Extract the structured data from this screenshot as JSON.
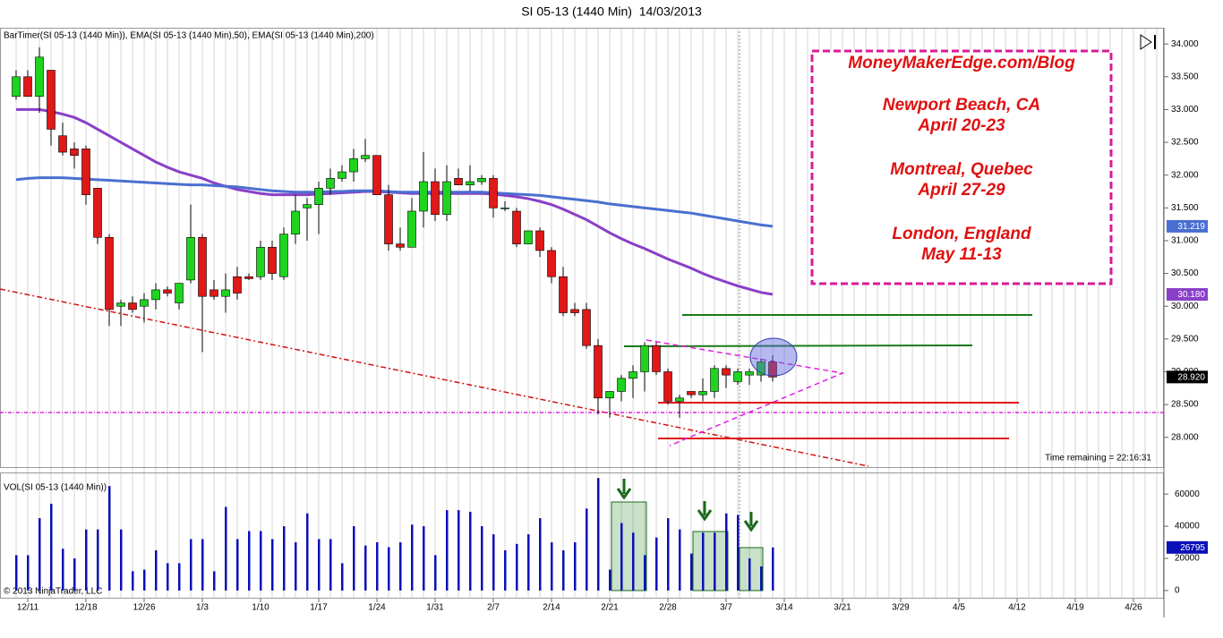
{
  "chart_data": [
    {
      "type": "candlestick",
      "title": "SI 05-13 (1440 Min)  14/03/2013",
      "subtitle": "BarTimer(SI 05-13 (1440 Min)), EMA(SI 05-13 (1440 Min),50), EMA(SI 05-13 (1440 Min),200)",
      "annotations": [
        "Time remaining = 22:16:31"
      ],
      "text_box": [
        "MoneyMakerEdge.com/Blog",
        "Newport Beach, CA",
        "April 20-23",
        "Montreal, Quebec",
        "April 27-29",
        "London, England",
        "May 11-13"
      ],
      "up_color": "#1ed41e",
      "down_color": "#e01818",
      "open": [
        33.2,
        33.5,
        33.2,
        33.6,
        32.6,
        32.4,
        32.4,
        31.8,
        31.05,
        30.0,
        30.05,
        30.0,
        30.1,
        30.25,
        30.05,
        30.4,
        31.05,
        30.25,
        30.15,
        30.45,
        30.45,
        30.45,
        30.9,
        30.45,
        31.1,
        31.5,
        31.55,
        31.8,
        31.95,
        32.05,
        32.25,
        32.3,
        31.7,
        30.95,
        30.9,
        31.45,
        31.9,
        31.4,
        31.95,
        31.85,
        31.9,
        31.95,
        31.5,
        31.45,
        30.95,
        31.15,
        30.85,
        30.45,
        29.95,
        29.95,
        29.4,
        28.6,
        28.7,
        28.9,
        29.0,
        29.4,
        29.0,
        28.55,
        28.7,
        28.65,
        28.7,
        29.05,
        28.85,
        28.95,
        28.95,
        29.15
      ],
      "high": [
        33.6,
        33.6,
        33.95,
        33.6,
        32.8,
        32.5,
        32.45,
        31.8,
        31.1,
        30.1,
        30.15,
        30.2,
        30.35,
        30.3,
        30.35,
        31.55,
        31.1,
        30.4,
        30.5,
        30.6,
        30.5,
        31.0,
        31.0,
        31.2,
        31.7,
        31.65,
        31.9,
        32.1,
        32.15,
        32.4,
        32.55,
        32.3,
        31.85,
        31.2,
        31.65,
        32.35,
        32.1,
        32.15,
        32.1,
        32.15,
        32.0,
        32.0,
        31.6,
        31.5,
        31.15,
        31.2,
        30.9,
        30.6,
        30.05,
        30.05,
        29.5,
        28.7,
        28.95,
        29.1,
        29.45,
        29.45,
        29.05,
        28.65,
        28.7,
        28.9,
        29.1,
        29.1,
        29.05,
        29.05,
        29.2,
        29.25
      ],
      "low": [
        33.15,
        33.2,
        32.95,
        32.45,
        32.3,
        32.1,
        31.55,
        30.95,
        29.7,
        29.7,
        29.9,
        29.75,
        29.95,
        30.15,
        29.95,
        30.35,
        29.3,
        30.1,
        29.9,
        30.1,
        30.4,
        30.4,
        30.4,
        30.4,
        30.95,
        31.0,
        31.1,
        31.7,
        31.9,
        31.9,
        32.2,
        31.7,
        30.85,
        30.85,
        30.9,
        31.2,
        31.3,
        31.3,
        31.85,
        31.75,
        31.85,
        31.35,
        31.45,
        30.9,
        30.95,
        30.75,
        30.35,
        29.85,
        29.85,
        29.35,
        28.35,
        28.3,
        28.55,
        28.6,
        28.7,
        28.95,
        28.5,
        28.3,
        28.6,
        28.55,
        28.6,
        28.75,
        28.8,
        28.8,
        28.85,
        28.85
      ],
      "close": [
        33.5,
        33.2,
        33.8,
        32.7,
        32.35,
        32.3,
        31.7,
        31.05,
        29.95,
        30.05,
        29.95,
        30.1,
        30.25,
        30.2,
        30.35,
        31.05,
        30.15,
        30.15,
        30.25,
        30.2,
        30.42,
        30.9,
        30.5,
        31.1,
        31.45,
        31.55,
        31.8,
        31.95,
        32.05,
        32.25,
        32.3,
        31.7,
        30.95,
        30.9,
        31.45,
        31.9,
        31.4,
        31.9,
        31.85,
        31.9,
        31.95,
        31.5,
        31.5,
        30.95,
        31.15,
        30.85,
        30.45,
        29.9,
        29.9,
        29.4,
        28.6,
        28.7,
        28.9,
        29.0,
        29.4,
        29.0,
        28.55,
        28.6,
        28.65,
        28.7,
        29.05,
        28.95,
        29.0,
        29.0,
        29.15,
        28.92
      ],
      "close_label": "28.920",
      "lines": [
        {
          "color": "#8a3fc8",
          "last_label": "30.180",
          "values": [
            33.0,
            33.0,
            33.0,
            32.97,
            32.93,
            32.88,
            32.8,
            32.7,
            32.6,
            32.5,
            32.4,
            32.3,
            32.2,
            32.12,
            32.05,
            32.0,
            31.95,
            31.88,
            31.83,
            31.78,
            31.75,
            31.72,
            31.7,
            31.7,
            31.7,
            31.7,
            31.71,
            31.72,
            31.73,
            31.74,
            31.75,
            31.75,
            31.74,
            31.73,
            31.72,
            31.72,
            31.72,
            31.72,
            31.72,
            31.72,
            31.72,
            31.71,
            31.69,
            31.67,
            31.64,
            31.6,
            31.55,
            31.48,
            31.4,
            31.32,
            31.22,
            31.12,
            31.03,
            30.95,
            30.88,
            30.8,
            30.72,
            30.65,
            30.58,
            30.5,
            30.43,
            30.37,
            30.31,
            30.26,
            30.21,
            30.18
          ]
        },
        {
          "color": "#4a6fd0",
          "last_label": "31.219",
          "values": [
            31.93,
            31.95,
            31.96,
            31.96,
            31.96,
            31.95,
            31.94,
            31.93,
            31.92,
            31.91,
            31.9,
            31.89,
            31.88,
            31.87,
            31.86,
            31.85,
            31.85,
            31.84,
            31.83,
            31.82,
            31.8,
            31.78,
            31.76,
            31.75,
            31.74,
            31.74,
            31.74,
            31.75,
            31.75,
            31.76,
            31.76,
            31.76,
            31.75,
            31.74,
            31.74,
            31.74,
            31.74,
            31.74,
            31.74,
            31.74,
            31.74,
            31.73,
            31.72,
            31.71,
            31.7,
            31.69,
            31.67,
            31.65,
            31.63,
            31.61,
            31.59,
            31.56,
            31.54,
            31.52,
            31.5,
            31.48,
            31.46,
            31.44,
            31.42,
            31.39,
            31.36,
            31.33,
            31.3,
            31.27,
            31.24,
            31.219
          ]
        }
      ],
      "ylim": [
        27.546,
        34.248
      ],
      "yticks": [
        {
          "value": 28,
          "label": "28.000"
        },
        {
          "value": 28.5,
          "label": "28.500"
        },
        {
          "value": 29,
          "label": "29.000"
        },
        {
          "value": 29.5,
          "label": "29.500"
        },
        {
          "value": 30,
          "label": "30.000"
        },
        {
          "value": 30.5,
          "label": "30.500"
        },
        {
          "value": 31,
          "label": "31.000"
        },
        {
          "value": 31.5,
          "label": "31.500"
        },
        {
          "value": 32,
          "label": "32.000"
        },
        {
          "value": 32.5,
          "label": "32.500"
        },
        {
          "value": 33,
          "label": "33.000"
        },
        {
          "value": 33.5,
          "label": "33.500"
        },
        {
          "value": 34,
          "label": "34.000"
        }
      ]
    },
    {
      "type": "bar",
      "title": "VOL(SI 05-13 (1440 Min))",
      "copyright": "© 2013 NinjaTrader, LLC",
      "color": "#0a10b8",
      "categories": [
        null,
        "12/11",
        null,
        null,
        null,
        null,
        "12/18",
        null,
        null,
        null,
        null,
        "12/26",
        null,
        null,
        null,
        null,
        "1/3",
        null,
        null,
        null,
        null,
        "1/10",
        null,
        null,
        null,
        null,
        "1/17",
        null,
        null,
        null,
        null,
        "1/24",
        null,
        null,
        null,
        null,
        "1/31",
        null,
        null,
        null,
        null,
        "2/7",
        null,
        null,
        null,
        null,
        "2/14",
        null,
        null,
        null,
        null,
        "2/21",
        null,
        null,
        null,
        null,
        "2/28",
        null,
        null,
        null,
        null,
        "3/7",
        null,
        null,
        null,
        null,
        "3/14",
        null,
        null,
        null,
        null,
        "3/21",
        null,
        null,
        null,
        null,
        "3/29",
        null,
        null,
        null,
        null,
        "4/5",
        null,
        null,
        null,
        null,
        "4/12",
        null,
        null,
        null,
        null,
        "4/19",
        null,
        null,
        null,
        null,
        "4/26",
        null,
        null,
        null
      ],
      "values": [
        22000,
        22000,
        45000,
        54000,
        26000,
        20000,
        38000,
        38000,
        65000,
        38000,
        12000,
        13000,
        25000,
        17000,
        17000,
        32000,
        32000,
        12000,
        52000,
        32000,
        37000,
        37000,
        32000,
        40000,
        30000,
        48000,
        32000,
        32000,
        17000,
        40000,
        28000,
        30000,
        27000,
        30000,
        41000,
        40000,
        22000,
        50000,
        50000,
        49000,
        40000,
        35000,
        25000,
        29000,
        35000,
        45000,
        30000,
        25000,
        30000,
        51000,
        70000,
        13000,
        42000,
        36000,
        22000,
        33000,
        45000,
        38000,
        23000,
        36000,
        36000,
        48000,
        47000,
        20000,
        15000,
        26795,
        null,
        null,
        null,
        null,
        null,
        null,
        null,
        null,
        null,
        null,
        null,
        null,
        null,
        null,
        null,
        null,
        null,
        null,
        null,
        null,
        null,
        null,
        null,
        null,
        null,
        null,
        null,
        null,
        null,
        null,
        null,
        null,
        null,
        null
      ],
      "ylim": [
        -4486,
        72897
      ],
      "yticks": [
        0,
        20000,
        40000,
        60000
      ]
    }
  ]
}
